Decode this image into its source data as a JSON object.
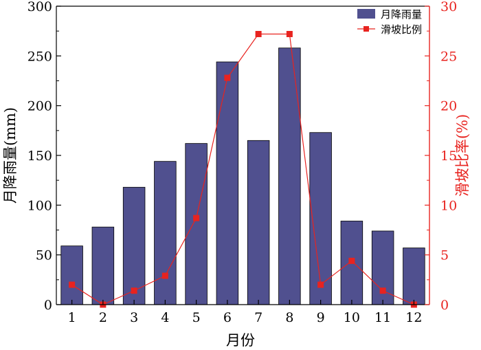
{
  "chart_data": {
    "type": "bar",
    "categories": [
      "1",
      "2",
      "3",
      "4",
      "5",
      "6",
      "7",
      "8",
      "9",
      "10",
      "11",
      "12"
    ],
    "xlabel": "月份",
    "ylabel_left": "月降雨量(mm)",
    "ylabel_right": "滑坡比率(%)",
    "ylim_left": [
      0,
      300
    ],
    "ylim_right": [
      0,
      30
    ],
    "yticks_left": [
      "0",
      "50",
      "100",
      "150",
      "200",
      "250",
      "300"
    ],
    "yticks_right": [
      "0",
      "5",
      "10",
      "15",
      "20",
      "25",
      "30"
    ],
    "legend_position": "top-right",
    "grid": false,
    "series": [
      {
        "name": "月降雨量",
        "type": "bar",
        "axis": "left",
        "color": "#50508f",
        "values": [
          59,
          78,
          118,
          144,
          162,
          244,
          165,
          258,
          173,
          84,
          74,
          57
        ]
      },
      {
        "name": "滑坡比例",
        "type": "line",
        "axis": "right",
        "color": "#e8231f",
        "marker": "square",
        "values": [
          2.0,
          0.0,
          1.4,
          2.9,
          8.7,
          22.8,
          27.2,
          27.2,
          2.0,
          4.4,
          1.4,
          0.0
        ]
      }
    ]
  }
}
